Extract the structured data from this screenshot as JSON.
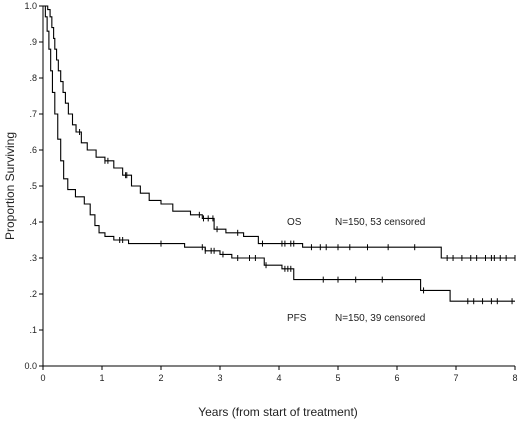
{
  "chart_data": {
    "type": "line",
    "subtype": "kaplan-meier",
    "title": "",
    "xlabel": "Years (from start of treatment)",
    "ylabel": "Proportion Surviving",
    "xlim": [
      0,
      8
    ],
    "ylim": [
      0,
      1
    ],
    "x_ticks": [
      0,
      1,
      2,
      3,
      4,
      5,
      6,
      7,
      8
    ],
    "x_tick_labels": [
      "0",
      "1",
      "2",
      "3",
      "4",
      "5",
      "6",
      "7",
      "8"
    ],
    "y_ticks": [
      0,
      0.1,
      0.2,
      0.3,
      0.4,
      0.5,
      0.6,
      0.7,
      0.8,
      0.9,
      1.0
    ],
    "y_tick_labels": [
      "0.0",
      ".1",
      ".2",
      ".3",
      ".4",
      ".5",
      ".6",
      ".7",
      ".8",
      ".9",
      "1.0"
    ],
    "grid": false,
    "series": [
      {
        "name": "OS",
        "color": "#000000",
        "points": [
          [
            0,
            1.0
          ],
          [
            0.08,
            0.99
          ],
          [
            0.12,
            0.97
          ],
          [
            0.15,
            0.94
          ],
          [
            0.18,
            0.91
          ],
          [
            0.2,
            0.88
          ],
          [
            0.23,
            0.85
          ],
          [
            0.26,
            0.82
          ],
          [
            0.3,
            0.79
          ],
          [
            0.34,
            0.76
          ],
          [
            0.38,
            0.73
          ],
          [
            0.43,
            0.7
          ],
          [
            0.5,
            0.67
          ],
          [
            0.56,
            0.65
          ],
          [
            0.65,
            0.62
          ],
          [
            0.75,
            0.6
          ],
          [
            0.9,
            0.58
          ],
          [
            1.05,
            0.57
          ],
          [
            1.2,
            0.55
          ],
          [
            1.35,
            0.53
          ],
          [
            1.5,
            0.5
          ],
          [
            1.65,
            0.48
          ],
          [
            1.8,
            0.46
          ],
          [
            2.0,
            0.45
          ],
          [
            2.2,
            0.43
          ],
          [
            2.5,
            0.42
          ],
          [
            2.7,
            0.41
          ],
          [
            2.9,
            0.38
          ],
          [
            3.1,
            0.37
          ],
          [
            3.4,
            0.36
          ],
          [
            3.65,
            0.34
          ],
          [
            4.4,
            0.33
          ],
          [
            6.75,
            0.3
          ],
          [
            8.0,
            0.3
          ]
        ],
        "censored": [
          0.62,
          1.05,
          1.1,
          1.4,
          1.42,
          2.65,
          2.72,
          2.8,
          2.88,
          2.95,
          3.3,
          3.72,
          4.05,
          4.1,
          4.2,
          4.25,
          4.55,
          4.7,
          4.8,
          5.0,
          5.2,
          5.5,
          5.85,
          6.3,
          6.85,
          6.95,
          7.1,
          7.25,
          7.35,
          7.5,
          7.6,
          7.65,
          7.75,
          7.85,
          8.0
        ]
      },
      {
        "name": "PFS",
        "color": "#000000",
        "points": [
          [
            0,
            1.0
          ],
          [
            0.04,
            0.97
          ],
          [
            0.07,
            0.93
          ],
          [
            0.1,
            0.88
          ],
          [
            0.13,
            0.82
          ],
          [
            0.16,
            0.76
          ],
          [
            0.2,
            0.7
          ],
          [
            0.25,
            0.63
          ],
          [
            0.3,
            0.57
          ],
          [
            0.35,
            0.52
          ],
          [
            0.42,
            0.49
          ],
          [
            0.55,
            0.47
          ],
          [
            0.7,
            0.45
          ],
          [
            0.8,
            0.42
          ],
          [
            0.88,
            0.39
          ],
          [
            0.95,
            0.37
          ],
          [
            1.05,
            0.36
          ],
          [
            1.2,
            0.35
          ],
          [
            1.45,
            0.34
          ],
          [
            2.4,
            0.33
          ],
          [
            2.75,
            0.32
          ],
          [
            3.0,
            0.31
          ],
          [
            3.2,
            0.3
          ],
          [
            3.75,
            0.28
          ],
          [
            4.05,
            0.27
          ],
          [
            4.25,
            0.24
          ],
          [
            6.4,
            0.21
          ],
          [
            6.9,
            0.18
          ],
          [
            8.0,
            0.18
          ]
        ],
        "censored": [
          1.3,
          1.35,
          2.0,
          2.7,
          2.75,
          2.85,
          2.9,
          3.05,
          3.3,
          3.5,
          3.6,
          3.78,
          4.1,
          4.15,
          4.2,
          4.75,
          5.0,
          5.3,
          5.75,
          6.45,
          7.2,
          7.3,
          7.45,
          7.6,
          7.7,
          7.95
        ]
      }
    ],
    "annotations": [
      {
        "label": "OS",
        "detail": "N=150, 53 censored"
      },
      {
        "label": "PFS",
        "detail": "N=150, 39 censored"
      }
    ]
  }
}
